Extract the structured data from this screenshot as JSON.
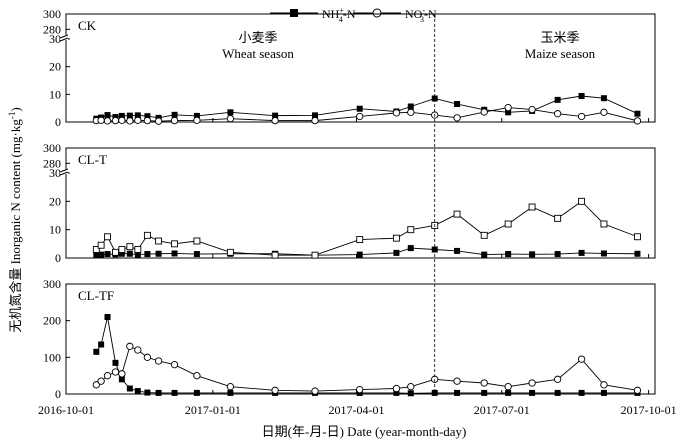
{
  "legend": {
    "nh4": {
      "base": "NH",
      "sup": "+",
      "sub": "4",
      "suffix": "-N"
    },
    "no3": {
      "base": "NO",
      "sup": "-",
      "sub": "3",
      "suffix": "-N"
    }
  },
  "season_labels": {
    "wheat_cn": "小麦季",
    "wheat_en": "Wheat season",
    "maize_cn": "玉米季",
    "maize_en": "Maize season"
  },
  "ylabel": "无机氮含量 Inorganic N content (mg·kg",
  "ylabel_sup": "-1",
  "ylabel_end": ")",
  "xlabel": "日期(年-月-日) Date (year-month-day)",
  "chart_data": {
    "type": "line",
    "x_ticks": [
      "2016-10-01",
      "2017-01-01",
      "2017-04-01",
      "2017-07-01",
      "2017-10-01"
    ],
    "xlim": [
      "2016-10-01",
      "2017-10-05"
    ],
    "season_divider": "2017-05-20",
    "axis_break": "broken y-axis between 100 and 270; tick 280 shown above break",
    "panels": [
      {
        "title": "CK",
        "yticks": [
          "0",
          "10",
          "20",
          "30",
          "280",
          "300"
        ],
        "series": [
          {
            "name": "NH4+-N",
            "marker": "filled-square",
            "x": [
              "2016-10-20",
              "2016-10-23",
              "2016-10-27",
              "2016-11-01",
              "2016-11-05",
              "2016-11-10",
              "2016-11-15",
              "2016-11-21",
              "2016-11-28",
              "2016-12-08",
              "2016-12-22",
              "2017-01-12",
              "2017-02-09",
              "2017-03-06",
              "2017-04-03",
              "2017-04-26",
              "2017-05-05",
              "2017-05-20",
              "2017-06-03",
              "2017-06-20",
              "2017-07-05",
              "2017-07-20",
              "2017-08-05",
              "2017-08-20",
              "2017-09-03",
              "2017-09-24"
            ],
            "y": [
              1.2,
              1.6,
              2.5,
              1.8,
              2.2,
              2.3,
              2.4,
              2.1,
              1.5,
              2.6,
              2.2,
              3.5,
              2.3,
              2.4,
              4.8,
              3.8,
              5.6,
              8.5,
              6.5,
              4.4,
              3.5,
              4.0,
              8.0,
              9.4,
              8.6,
              3.0
            ]
          },
          {
            "name": "NO3--N",
            "marker": "open-circle",
            "x": [
              "2016-10-20",
              "2016-10-23",
              "2016-10-27",
              "2016-11-01",
              "2016-11-05",
              "2016-11-10",
              "2016-11-15",
              "2016-11-21",
              "2016-11-28",
              "2016-12-08",
              "2016-12-22",
              "2017-01-12",
              "2017-02-09",
              "2017-03-06",
              "2017-04-03",
              "2017-04-26",
              "2017-05-05",
              "2017-05-20",
              "2017-06-03",
              "2017-06-20",
              "2017-07-05",
              "2017-07-20",
              "2017-08-05",
              "2017-08-20",
              "2017-09-03",
              "2017-09-24"
            ],
            "y": [
              0.5,
              0.6,
              0.4,
              0.5,
              0.6,
              0.4,
              0.6,
              0.5,
              0.3,
              0.5,
              0.6,
              1.2,
              0.5,
              0.5,
              2.0,
              3.3,
              3.5,
              2.5,
              1.5,
              3.6,
              5.2,
              4.5,
              3.0,
              2.0,
              3.5,
              0.4
            ]
          }
        ]
      },
      {
        "title": "CL-T",
        "yticks": [
          "0",
          "10",
          "20",
          "30",
          "280",
          "300"
        ],
        "series": [
          {
            "name": "NH4+-N",
            "marker": "filled-square",
            "x": [
              "2016-10-20",
              "2016-10-23",
              "2016-10-27",
              "2016-11-01",
              "2016-11-05",
              "2016-11-10",
              "2016-11-15",
              "2016-11-21",
              "2016-11-28",
              "2016-12-08",
              "2016-12-22",
              "2017-01-12",
              "2017-02-09",
              "2017-03-06",
              "2017-04-03",
              "2017-04-26",
              "2017-05-05",
              "2017-05-20",
              "2017-06-03",
              "2017-06-20",
              "2017-07-05",
              "2017-07-20",
              "2017-08-05",
              "2017-08-20",
              "2017-09-03",
              "2017-09-24"
            ],
            "y": [
              1.0,
              1.2,
              1.4,
              1.3,
              1.5,
              1.5,
              1.2,
              1.4,
              1.5,
              1.6,
              1.4,
              1.5,
              1.5,
              1.0,
              1.2,
              1.8,
              3.5,
              3.0,
              2.5,
              1.2,
              1.4,
              1.3,
              1.4,
              1.8,
              1.6,
              1.5
            ]
          },
          {
            "name": "NO3--N",
            "marker": "open-square",
            "x": [
              "2016-10-20",
              "2016-10-23",
              "2016-10-27",
              "2016-11-01",
              "2016-11-05",
              "2016-11-10",
              "2016-11-15",
              "2016-11-21",
              "2016-11-28",
              "2016-12-08",
              "2016-12-22",
              "2017-01-12",
              "2017-02-09",
              "2017-03-06",
              "2017-04-03",
              "2017-04-26",
              "2017-05-05",
              "2017-05-20",
              "2017-06-03",
              "2017-06-20",
              "2017-07-05",
              "2017-07-20",
              "2017-08-05",
              "2017-08-20",
              "2017-09-03",
              "2017-09-24"
            ],
            "y": [
              3.0,
              4.5,
              7.5,
              2.0,
              3.0,
              4.0,
              3.0,
              8.0,
              6.0,
              5.0,
              6.0,
              2.0,
              1.0,
              1.0,
              6.5,
              7.0,
              10.0,
              11.5,
              15.5,
              8.0,
              12.0,
              18.0,
              14.0,
              20.0,
              12.0,
              7.5
            ]
          }
        ]
      },
      {
        "title": "CL-TF",
        "yticks": [
          "0",
          "100",
          "200",
          "300"
        ],
        "series": [
          {
            "name": "NH4+-N",
            "marker": "filled-square",
            "x": [
              "2016-10-20",
              "2016-10-23",
              "2016-10-27",
              "2016-11-01",
              "2016-11-05",
              "2016-11-10",
              "2016-11-15",
              "2016-11-21",
              "2016-11-28",
              "2016-12-08",
              "2016-12-22",
              "2017-01-12",
              "2017-02-09",
              "2017-03-06",
              "2017-04-03",
              "2017-04-26",
              "2017-05-05",
              "2017-05-20",
              "2017-06-03",
              "2017-06-20",
              "2017-07-05",
              "2017-07-20",
              "2017-08-05",
              "2017-08-20",
              "2017-09-03",
              "2017-09-24"
            ],
            "y": [
              115,
              135,
              210,
              85,
              40,
              15,
              8,
              4,
              3,
              3,
              3,
              3,
              3,
              3,
              3,
              3,
              2,
              3,
              3,
              3,
              3,
              3,
              3,
              3,
              3,
              3
            ]
          },
          {
            "name": "NO3--N",
            "marker": "open-circle",
            "x": [
              "2016-10-20",
              "2016-10-23",
              "2016-10-27",
              "2016-11-01",
              "2016-11-05",
              "2016-11-10",
              "2016-11-15",
              "2016-11-21",
              "2016-11-28",
              "2016-12-08",
              "2016-12-22",
              "2017-01-12",
              "2017-02-09",
              "2017-03-06",
              "2017-04-03",
              "2017-04-26",
              "2017-05-05",
              "2017-05-20",
              "2017-06-03",
              "2017-06-20",
              "2017-07-05",
              "2017-07-20",
              "2017-08-05",
              "2017-08-20",
              "2017-09-03",
              "2017-09-24"
            ],
            "y": [
              25,
              35,
              50,
              60,
              55,
              130,
              120,
              100,
              90,
              80,
              50,
              20,
              10,
              8,
              12,
              15,
              20,
              40,
              35,
              30,
              20,
              30,
              40,
              95,
              25,
              10
            ]
          }
        ]
      }
    ]
  }
}
